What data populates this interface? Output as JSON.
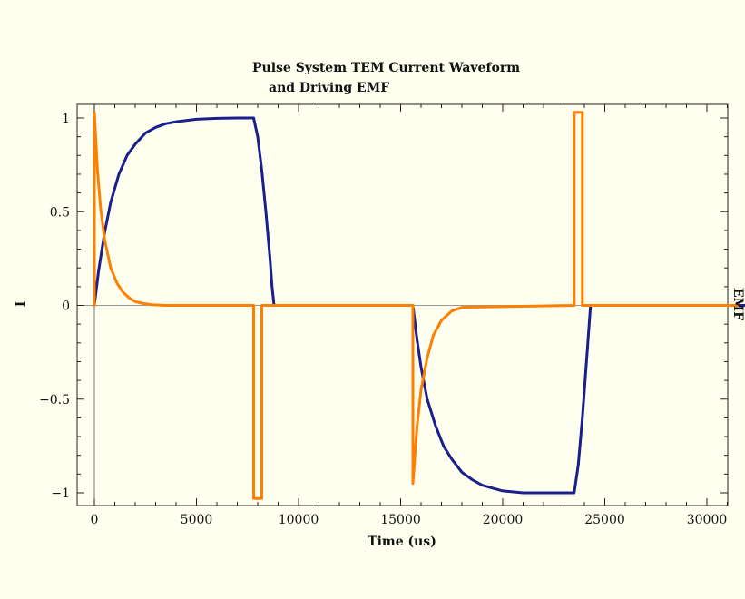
{
  "chart_data": {
    "type": "line",
    "title_lines": [
      "Pulse System TEM Current  Waveform",
      "and Driving EMF"
    ],
    "xlabel": "Time (us)",
    "ylabel": "I",
    "y2label": "EMF",
    "xlim": [
      -1500,
      32000
    ],
    "ylim": [
      -1.05,
      1.05
    ],
    "xticks": [
      0,
      5000,
      10000,
      15000,
      20000,
      25000,
      30000
    ],
    "yticks": [
      -1,
      -0.5,
      0,
      0.5,
      1
    ],
    "xtick_labels": [
      "0",
      "5000",
      "10000",
      "15000",
      "20000",
      "25000",
      "30000"
    ],
    "ytick_labels": [
      "−1",
      "−0.5",
      "0",
      "0.5",
      "1"
    ],
    "grid": false,
    "series": [
      {
        "color": "#1a1f8c",
        "x": [
          0,
          200,
          500,
          800,
          1200,
          1600,
          2000,
          2500,
          3000,
          3500,
          4000,
          5000,
          6000,
          7000,
          7800,
          8000,
          8200,
          8400,
          8600,
          8700,
          8800,
          15600,
          15800,
          16000,
          16300,
          16700,
          17100,
          17500,
          18000,
          18500,
          19000,
          20000,
          21000,
          22000,
          23000,
          23500,
          23700,
          23900,
          24100,
          24300,
          32000
        ],
        "y": [
          0,
          0.18,
          0.39,
          0.55,
          0.7,
          0.8,
          0.86,
          0.92,
          0.95,
          0.97,
          0.98,
          0.993,
          0.998,
          1.0,
          1.0,
          0.9,
          0.72,
          0.5,
          0.25,
          0.1,
          0,
          0,
          -0.18,
          -0.33,
          -0.5,
          -0.64,
          -0.75,
          -0.82,
          -0.89,
          -0.93,
          -0.96,
          -0.99,
          -1.0,
          -1.0,
          -1.0,
          -1.0,
          -0.85,
          -0.6,
          -0.3,
          0,
          0
        ]
      },
      {
        "color": "#ff7f00",
        "x": [
          0,
          0,
          150,
          300,
          500,
          800,
          1100,
          1400,
          1700,
          2000,
          2400,
          2800,
          3500,
          7800,
          7800,
          8200,
          8200,
          15600,
          15600,
          15800,
          16000,
          16300,
          16600,
          17000,
          17500,
          18000,
          23500,
          23500,
          23900,
          23900,
          31500
        ],
        "y": [
          0,
          1.03,
          0.72,
          0.52,
          0.35,
          0.2,
          0.12,
          0.07,
          0.04,
          0.02,
          0.01,
          0.004,
          0,
          0,
          -1.03,
          -1.03,
          0,
          0,
          -0.95,
          -0.65,
          -0.45,
          -0.28,
          -0.16,
          -0.08,
          -0.03,
          -0.01,
          0,
          1.03,
          1.03,
          0,
          0
        ]
      }
    ]
  }
}
